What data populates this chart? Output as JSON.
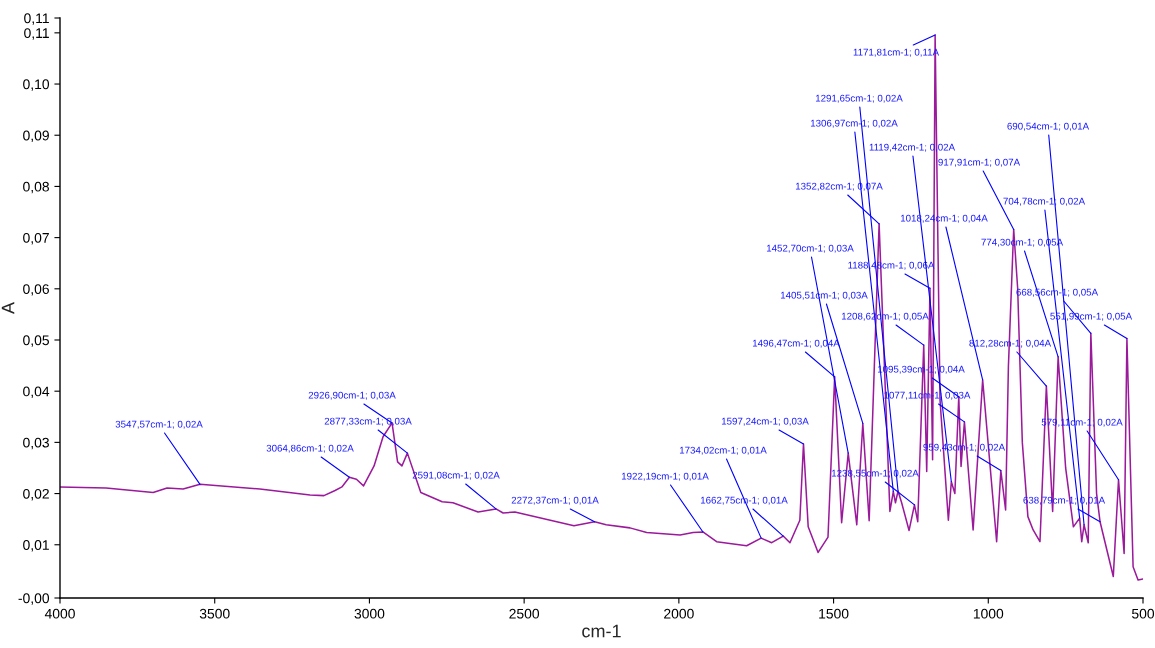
{
  "chart_data": {
    "type": "line",
    "xlabel": "cm-1",
    "ylabel": "A",
    "x": [
      4000,
      3851,
      3699,
      3654,
      3602,
      3547.57,
      3354,
      3192,
      3147,
      3111,
      3089,
      3064.86,
      3042,
      3019,
      2985,
      2956,
      2926.9,
      2909,
      2895,
      2877.33,
      2834,
      2765,
      2730,
      2649,
      2591.08,
      2568,
      2530,
      2339,
      2272.37,
      2235,
      2158,
      2104,
      1996,
      1954,
      1922.19,
      1878,
      1781,
      1734.02,
      1700,
      1662.75,
      1641,
      1609,
      1597.24,
      1582,
      1550,
      1518,
      1496.47,
      1474,
      1452.7,
      1425,
      1405.51,
      1385,
      1352.82,
      1318,
      1306.97,
      1300,
      1291.65,
      1280,
      1256,
      1238.55,
      1228,
      1208.62,
      1199,
      1188.48,
      1180,
      1171.81,
      1156,
      1129,
      1119.42,
      1108,
      1095.39,
      1088,
      1077.11,
      1049,
      1018.24,
      973,
      959.43,
      944,
      935,
      917.91,
      905,
      890,
      872,
      855,
      833,
      812.28,
      792,
      774.3,
      750,
      725,
      704.78,
      698,
      690.54,
      677,
      668.56,
      650,
      638.79,
      596,
      579.11,
      561,
      551.99,
      532,
      516,
      500
    ],
    "series": [
      {
        "color": "#9b1a9b",
        "values": [
          0.0213,
          0.0211,
          0.0202,
          0.0211,
          0.0209,
          0.0218,
          0.0209,
          0.0197,
          0.0196,
          0.0206,
          0.0213,
          0.0232,
          0.0228,
          0.0215,
          0.0254,
          0.0311,
          0.0338,
          0.0262,
          0.0254,
          0.0279,
          0.0202,
          0.0184,
          0.0182,
          0.0164,
          0.017,
          0.0162,
          0.0164,
          0.0137,
          0.0145,
          0.0139,
          0.0133,
          0.0124,
          0.0119,
          0.0124,
          0.0125,
          0.0106,
          0.0098,
          0.0113,
          0.0104,
          0.0117,
          0.0104,
          0.0148,
          0.0297,
          0.0135,
          0.0085,
          0.0115,
          0.0428,
          0.0143,
          0.0279,
          0.0139,
          0.0337,
          0.0147,
          0.0727,
          0.0165,
          0.0204,
          0.0182,
          0.0205,
          0.0182,
          0.0128,
          0.0178,
          0.0145,
          0.049,
          0.0243,
          0.0601,
          0.0266,
          0.1096,
          0.0383,
          0.0148,
          0.0223,
          0.02,
          0.0389,
          0.0253,
          0.034,
          0.0129,
          0.0422,
          0.0106,
          0.0245,
          0.0168,
          0.0448,
          0.0716,
          0.06,
          0.03,
          0.0155,
          0.0129,
          0.0106,
          0.041,
          0.0165,
          0.0467,
          0.025,
          0.0135,
          0.0152,
          0.0106,
          0.0139,
          0.0104,
          0.0513,
          0.02,
          0.0145,
          0.0038,
          0.0227,
          0.0083,
          0.0503,
          0.0057,
          0.0031,
          0.0033
        ]
      }
    ],
    "xlim": [
      4000,
      500
    ],
    "xticks": [
      4000,
      3500,
      3000,
      2500,
      2000,
      1500,
      1000,
      500
    ],
    "ylim": [
      -0.0004,
      0.1129
    ],
    "yticks": [
      {
        "value": -0.0004,
        "label": "-0,00"
      },
      {
        "value": 0.01,
        "label": "0,01"
      },
      {
        "value": 0.02,
        "label": "0,02"
      },
      {
        "value": 0.03,
        "label": "0,03"
      },
      {
        "value": 0.04,
        "label": "0,04"
      },
      {
        "value": 0.05,
        "label": "0,05"
      },
      {
        "value": 0.06,
        "label": "0,06"
      },
      {
        "value": 0.07,
        "label": "0,07"
      },
      {
        "value": 0.08,
        "label": "0,08"
      },
      {
        "value": 0.09,
        "label": "0,09"
      },
      {
        "value": 0.1,
        "label": "0,10"
      },
      {
        "value": 0.11,
        "label": "0,11"
      },
      {
        "value": 0.1129,
        "label": "0,11"
      }
    ],
    "grid": false,
    "legend": false,
    "annotations": [
      {
        "text": "3547,57cm-1; 0,02A",
        "x": 3547.57,
        "y": 0.0218
      },
      {
        "text": "3064,86cm-1; 0,02A",
        "x": 3064.86,
        "y": 0.0232
      },
      {
        "text": "2926,90cm-1; 0,03A",
        "x": 2926.9,
        "y": 0.0338
      },
      {
        "text": "2877,33cm-1; 0,03A",
        "x": 2877.33,
        "y": 0.0279
      },
      {
        "text": "2591,08cm-1; 0,02A",
        "x": 2591.08,
        "y": 0.017
      },
      {
        "text": "2272,37cm-1; 0,01A",
        "x": 2272.37,
        "y": 0.0145
      },
      {
        "text": "1922,19cm-1; 0,01A",
        "x": 1922.19,
        "y": 0.0125
      },
      {
        "text": "1734,02cm-1; 0,01A",
        "x": 1734.02,
        "y": 0.0113
      },
      {
        "text": "1662,75cm-1; 0,01A",
        "x": 1662.75,
        "y": 0.0117
      },
      {
        "text": "1597,24cm-1; 0,03A",
        "x": 1597.24,
        "y": 0.0297
      },
      {
        "text": "1496,47cm-1; 0,04A",
        "x": 1496.47,
        "y": 0.0428
      },
      {
        "text": "1452,70cm-1; 0,03A",
        "x": 1452.7,
        "y": 0.0279
      },
      {
        "text": "1405,51cm-1; 0,03A",
        "x": 1405.51,
        "y": 0.0337
      },
      {
        "text": "1352,82cm-1; 0,07A",
        "x": 1352.82,
        "y": 0.0727
      },
      {
        "text": "1306,97cm-1; 0,02A",
        "x": 1306.97,
        "y": 0.0204
      },
      {
        "text": "1291,65cm-1; 0,02A",
        "x": 1291.65,
        "y": 0.0205
      },
      {
        "text": "1238,55cm-1; 0,02A",
        "x": 1238.55,
        "y": 0.0178
      },
      {
        "text": "1208,62cm-1; 0,05A",
        "x": 1208.62,
        "y": 0.049
      },
      {
        "text": "1188,48cm-1; 0,06A",
        "x": 1188.48,
        "y": 0.0601
      },
      {
        "text": "1171,81cm-1; 0,11A",
        "x": 1171.81,
        "y": 0.1096
      },
      {
        "text": "1119,42cm-1; 0,02A",
        "x": 1119.42,
        "y": 0.0223
      },
      {
        "text": "1095,39cm-1; 0,04A",
        "x": 1095.39,
        "y": 0.0389
      },
      {
        "text": "1077,11cm-1; 0,03A",
        "x": 1077.11,
        "y": 0.034
      },
      {
        "text": "1018,24cm-1; 0,04A",
        "x": 1018.24,
        "y": 0.0422
      },
      {
        "text": "959,43cm-1; 0,02A",
        "x": 959.43,
        "y": 0.0245
      },
      {
        "text": "917,91cm-1; 0,07A",
        "x": 917.91,
        "y": 0.0716
      },
      {
        "text": "812,28cm-1; 0,04A",
        "x": 812.28,
        "y": 0.041
      },
      {
        "text": "774,30cm-1; 0,05A",
        "x": 774.3,
        "y": 0.0467
      },
      {
        "text": "704,78cm-1; 0,02A",
        "x": 704.78,
        "y": 0.0152
      },
      {
        "text": "690,54cm-1; 0,01A",
        "x": 690.54,
        "y": 0.0139
      },
      {
        "text": "668,56cm-1; 0,05A",
        "x": 668.56,
        "y": 0.0513
      },
      {
        "text": "638,79cm-1; 0,01A",
        "x": 638.79,
        "y": 0.0145
      },
      {
        "text": "579,11cm-1; 0,02A",
        "x": 579.11,
        "y": 0.0227
      },
      {
        "text": "551,99cm-1; 0,05A",
        "x": 551.99,
        "y": 0.0503
      }
    ]
  }
}
